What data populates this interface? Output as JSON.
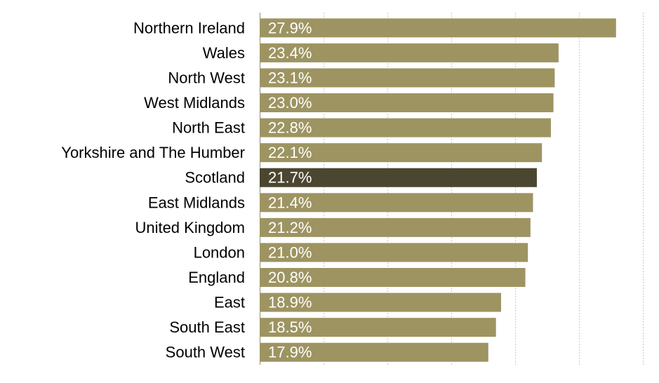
{
  "chart_data": {
    "type": "bar",
    "orientation": "horizontal",
    "title": "",
    "xlabel": "",
    "ylabel": "",
    "xlim": [
      0,
      30
    ],
    "grid": true,
    "legend": "none",
    "categories": [
      "Northern Ireland",
      "Wales",
      "North West",
      "West Midlands",
      "North East",
      "Yorkshire and The Humber",
      "Scotland",
      "East Midlands",
      "United Kingdom",
      "London",
      "England",
      "East",
      "South East",
      "South West"
    ],
    "values": [
      27.9,
      23.4,
      23.1,
      23.0,
      22.8,
      22.1,
      21.7,
      21.4,
      21.2,
      21.0,
      20.8,
      18.9,
      18.5,
      17.9
    ],
    "data_labels": [
      "27.9%",
      "23.4%",
      "23.1%",
      "23.0%",
      "22.8%",
      "22.1%",
      "21.7%",
      "21.4%",
      "21.2%",
      "21.0%",
      "20.8%",
      "18.9%",
      "18.5%",
      "17.9%"
    ],
    "highlight_index": 6,
    "colors": {
      "bar": "#9d9462",
      "highlight": "#4a4630"
    }
  }
}
